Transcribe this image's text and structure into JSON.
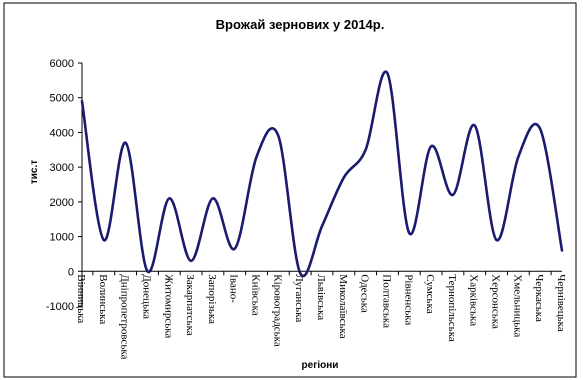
{
  "chart_data": {
    "type": "line",
    "title": "Врожай зернових у 2014р.",
    "xlabel": "регіони",
    "ylabel": "тис.т",
    "ylim": [
      -1000,
      6000
    ],
    "yticks": [
      6000,
      5000,
      4000,
      3000,
      2000,
      1000,
      0,
      -1000
    ],
    "smooth": true,
    "grid": false,
    "legend": "none",
    "line_color": "#1a1a6e",
    "categories": [
      "Вінницька",
      "Волинська",
      "Дніпропетровська",
      "Донецька",
      "Житомирська",
      "Закарпатська",
      "Запорізька",
      "Івано-",
      "Київська",
      "Кіровоградська",
      "Луганська",
      "Львівська",
      "Миколаївська",
      "Одеська",
      "Полтавська",
      "Рівненська",
      "Сумська",
      "Тернопільська",
      "Харківська",
      "Херсонська",
      "Хмельницька",
      "Черкаська",
      "Чернівецька"
    ],
    "series": [
      {
        "values": [
          4900,
          900,
          3700,
          0,
          2100,
          300,
          2100,
          650,
          3300,
          3900,
          -50,
          1300,
          2700,
          3500,
          5700,
          1100,
          3600,
          2200,
          4200,
          900,
          3300,
          4100,
          600
        ]
      }
    ]
  }
}
